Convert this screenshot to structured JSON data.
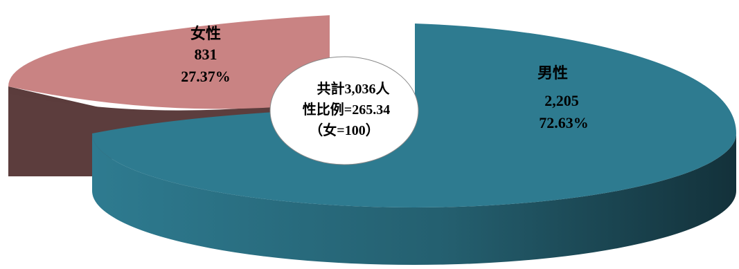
{
  "chart_data": {
    "type": "pie",
    "style": "3d-exploded-doughnut",
    "total_label": "共計3,036人",
    "ratio_label": "性比例=265.34",
    "ratio_note": "（女=100）",
    "slices": [
      {
        "name": "男性",
        "value": 2205,
        "value_label": "2,205",
        "percent": 72.63,
        "percent_label": "72.63%",
        "color": "#2E7B90",
        "side_color": "#1F5665",
        "text_color": "#000000"
      },
      {
        "name": "女性",
        "value": 831,
        "value_label": "831",
        "percent": 27.37,
        "percent_label": "27.37%",
        "color": "#C98383",
        "side_color": "#5A3A3A",
        "text_color": "#000000"
      }
    ]
  }
}
